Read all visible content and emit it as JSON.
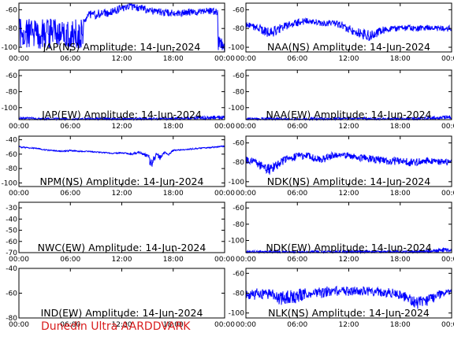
{
  "footer_text": "Dunedin Ultra AARDDVARK",
  "x_tick_labels": [
    "00:00",
    "06:00",
    "12:00",
    "18:00",
    "00:00"
  ],
  "colors": {
    "trace": "#0000ff",
    "axes": "#000000",
    "footer": "#d81e1e"
  },
  "chart_data": [
    {
      "type": "line",
      "title": "JAP(NS) Amplitude: 14-Jun-2024",
      "ylim": [
        -105,
        -53
      ],
      "yticks": [
        -100,
        -80,
        -60
      ],
      "x_range_hours": [
        0,
        24
      ],
      "series": [
        {
          "x": [
            0,
            1,
            2,
            3,
            4,
            5,
            6,
            7,
            7.5,
            7.5,
            8,
            9,
            10,
            11,
            12,
            13,
            14,
            15,
            16,
            17,
            18,
            19,
            20,
            21,
            21.5,
            22,
            22.5,
            23,
            23.2,
            23.2,
            23.5,
            24
          ],
          "y": [
            -85,
            -86,
            -85,
            -86,
            -85,
            -85,
            -86,
            -85,
            -86,
            -72,
            -66,
            -65,
            -64,
            -62,
            -58,
            -57,
            -58,
            -60,
            -62,
            -63,
            -64,
            -64,
            -63,
            -62,
            -61,
            -61,
            -62,
            -62,
            -64,
            -95,
            -98,
            -98
          ],
          "band": [
            20,
            20,
            20,
            20,
            20,
            20,
            20,
            20,
            20,
            6,
            6,
            6,
            6,
            5,
            5,
            5,
            5,
            5,
            5,
            5,
            5,
            5,
            5,
            5,
            5,
            5,
            5,
            5,
            5,
            10,
            10,
            10
          ]
        }
      ]
    },
    {
      "type": "line",
      "title": "NAA(NS) Amplitude: 14-Jun-2024",
      "ylim": [
        -105,
        -53
      ],
      "yticks": [
        -100,
        -80,
        -60
      ],
      "x_range_hours": [
        0,
        24
      ],
      "series": [
        {
          "x": [
            0,
            1,
            2,
            3,
            4,
            5,
            6,
            7,
            8,
            9,
            10,
            11,
            12,
            13,
            14,
            15,
            16,
            17,
            18,
            19,
            20,
            21,
            22,
            23,
            24
          ],
          "y": [
            -76,
            -78,
            -82,
            -85,
            -80,
            -76,
            -74,
            -72,
            -73,
            -75,
            -74,
            -76,
            -80,
            -84,
            -88,
            -86,
            -82,
            -80,
            -80,
            -79,
            -80,
            -79,
            -80,
            -80,
            -80
          ],
          "band": [
            5,
            5,
            6,
            8,
            6,
            5,
            5,
            4,
            4,
            4,
            4,
            5,
            6,
            6,
            8,
            6,
            5,
            4,
            4,
            4,
            4,
            4,
            4,
            4,
            4
          ]
        }
      ]
    },
    {
      "type": "line",
      "title": "JAP(EW) Amplitude: 14-Jun-2024",
      "ylim": [
        -115,
        -53
      ],
      "yticks": [
        -100,
        -80,
        -60
      ],
      "x_range_hours": [
        0,
        24
      ],
      "series": [
        {
          "x": [
            0,
            2,
            4,
            6,
            8,
            10,
            12,
            14,
            16,
            18,
            20,
            22,
            23,
            24
          ],
          "y": [
            -113,
            -114,
            -114,
            -115,
            -114,
            -114,
            -114,
            -114,
            -114,
            -114,
            -113,
            -113,
            -112,
            -112
          ],
          "band": [
            2,
            2,
            2,
            2,
            2,
            2,
            2,
            2,
            2,
            2,
            2,
            3,
            3,
            3
          ]
        }
      ]
    },
    {
      "type": "line",
      "title": "NAA(EW) Amplitude: 14-Jun-2024",
      "ylim": [
        -115,
        -53
      ],
      "yticks": [
        -100,
        -80,
        -60
      ],
      "x_range_hours": [
        0,
        24
      ],
      "series": [
        {
          "x": [
            0,
            2,
            4,
            6,
            8,
            10,
            12,
            14,
            16,
            18,
            20,
            22,
            23,
            24
          ],
          "y": [
            -114,
            -114,
            -114,
            -115,
            -114,
            -114,
            -114,
            -114,
            -114,
            -114,
            -114,
            -113,
            -112,
            -112
          ],
          "band": [
            2,
            2,
            2,
            2,
            2,
            2,
            2,
            2,
            2,
            2,
            2,
            3,
            3,
            3
          ]
        }
      ]
    },
    {
      "type": "line",
      "title": "NPM(NS) Amplitude: 14-Jun-2024",
      "ylim": [
        -105,
        -35
      ],
      "yticks": [
        -100,
        -80,
        -60,
        -40
      ],
      "x_range_hours": [
        0,
        24
      ],
      "series": [
        {
          "x": [
            0,
            1,
            2,
            3,
            4,
            5,
            6,
            7,
            8,
            9,
            10,
            11,
            12,
            13,
            14,
            15,
            15.5,
            16,
            16.5,
            17,
            17.5,
            18,
            19,
            20,
            21,
            22,
            23,
            24
          ],
          "y": [
            -50,
            -51,
            -52,
            -54,
            -55,
            -56,
            -55,
            -56,
            -56,
            -57,
            -58,
            -59,
            -58,
            -60,
            -58,
            -62,
            -75,
            -60,
            -65,
            -58,
            -60,
            -55,
            -54,
            -53,
            -52,
            -51,
            -50,
            -49
          ],
          "band": [
            1,
            1,
            1,
            1,
            1,
            1,
            1,
            1,
            1,
            1,
            1,
            1,
            1,
            2,
            2,
            3,
            12,
            3,
            6,
            2,
            2,
            1,
            1,
            1,
            1,
            1,
            1,
            1
          ]
        }
      ]
    },
    {
      "type": "line",
      "title": "NDK(NS) Amplitude: 14-Jun-2024",
      "ylim": [
        -105,
        -53
      ],
      "yticks": [
        -100,
        -80,
        -60
      ],
      "x_range_hours": [
        0,
        24
      ],
      "series": [
        {
          "x": [
            0,
            1,
            2,
            3,
            4,
            5,
            6,
            7,
            8,
            9,
            10,
            11,
            12,
            13,
            14,
            15,
            16,
            17,
            18,
            19,
            20,
            21,
            22,
            23,
            24
          ],
          "y": [
            -78,
            -80,
            -85,
            -88,
            -80,
            -76,
            -74,
            -73,
            -76,
            -77,
            -73,
            -72,
            -73,
            -75,
            -76,
            -77,
            -78,
            -79,
            -78,
            -80,
            -80,
            -78,
            -79,
            -80,
            -80
          ],
          "band": [
            5,
            5,
            6,
            7,
            6,
            5,
            5,
            5,
            5,
            5,
            5,
            4,
            4,
            4,
            5,
            5,
            5,
            5,
            5,
            5,
            5,
            4,
            4,
            4,
            4
          ]
        }
      ]
    },
    {
      "type": "line",
      "title": "NWC(EW) Amplitude: 14-Jun-2024",
      "ylim": [
        -70,
        -25
      ],
      "yticks": [
        -70,
        -60,
        -50,
        -40,
        -30
      ],
      "x_range_hours": [
        0,
        24
      ],
      "series": [
        {
          "x": [],
          "y": [],
          "band": []
        }
      ]
    },
    {
      "type": "line",
      "title": "NDK(EW) Amplitude: 14-Jun-2024",
      "ylim": [
        -115,
        -53
      ],
      "yticks": [
        -100,
        -80,
        -60
      ],
      "x_range_hours": [
        0,
        24
      ],
      "series": [
        {
          "x": [
            0,
            2,
            4,
            6,
            8,
            10,
            12,
            14,
            16,
            18,
            20,
            22,
            23,
            24
          ],
          "y": [
            -114,
            -114,
            -114,
            -115,
            -114,
            -114,
            -114,
            -114,
            -114,
            -114,
            -114,
            -113,
            -112,
            -112
          ],
          "band": [
            2,
            2,
            2,
            2,
            2,
            2,
            2,
            2,
            2,
            2,
            2,
            3,
            3,
            3
          ]
        }
      ]
    },
    {
      "type": "line",
      "title": "IND(EW) Amplitude: 14-Jun-2024",
      "ylim": [
        -80,
        -40
      ],
      "yticks": [
        -80,
        -60,
        -40
      ],
      "x_range_hours": [
        0,
        24
      ],
      "series": [
        {
          "x": [],
          "y": [],
          "band": []
        }
      ]
    },
    {
      "type": "line",
      "title": "NLK(NS) Amplitude: 14-Jun-2024",
      "ylim": [
        -105,
        -55
      ],
      "yticks": [
        -100,
        -80,
        -60
      ],
      "x_range_hours": [
        0,
        24
      ],
      "series": [
        {
          "x": [
            0,
            1,
            2,
            3,
            4,
            5,
            6,
            7,
            8,
            9,
            10,
            11,
            12,
            13,
            14,
            15,
            16,
            17,
            18,
            19,
            20,
            21,
            22,
            23,
            24
          ],
          "y": [
            -82,
            -81,
            -80,
            -82,
            -85,
            -84,
            -83,
            -80,
            -81,
            -79,
            -78,
            -78,
            -78,
            -77,
            -78,
            -79,
            -79,
            -80,
            -82,
            -85,
            -90,
            -88,
            -84,
            -80,
            -80
          ],
          "band": [
            7,
            7,
            7,
            8,
            9,
            9,
            9,
            7,
            7,
            7,
            6,
            6,
            6,
            6,
            6,
            6,
            6,
            6,
            6,
            7,
            8,
            7,
            6,
            5,
            5
          ]
        }
      ]
    }
  ]
}
